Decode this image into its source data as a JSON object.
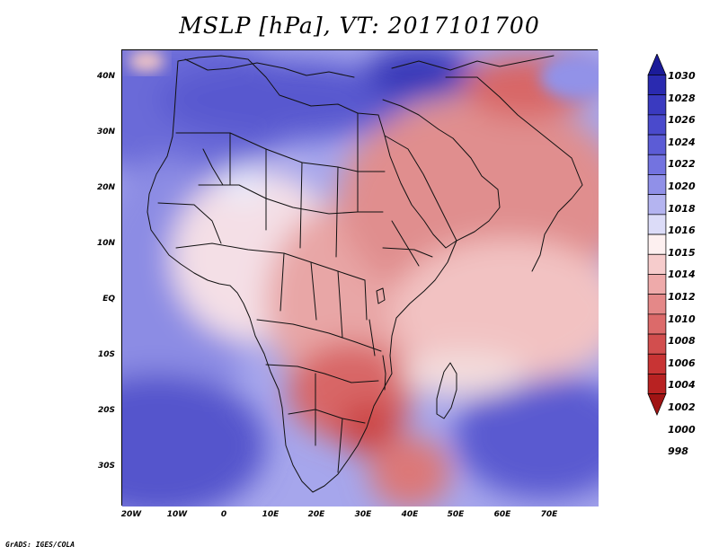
{
  "title": "MSLP [hPa], VT: 2017101700",
  "footer": "GrADS: IGES/COLA",
  "map": {
    "variable": "Mean sea level pressure",
    "units": "hPa",
    "region": "Africa, Arabia and western Indian Ocean",
    "lat_labels": [
      "40N",
      "30N",
      "20N",
      "10N",
      "EQ",
      "10S",
      "20S",
      "30S"
    ],
    "lon_labels": [
      "20W",
      "10W",
      "0",
      "10E",
      "20E",
      "30E",
      "40E",
      "50E",
      "60E",
      "70E"
    ]
  },
  "colorbar": {
    "levels": [
      "1030",
      "1028",
      "1026",
      "1024",
      "1022",
      "1020",
      "1018",
      "1016",
      "1015",
      "1014",
      "1012",
      "1010",
      "1008",
      "1006",
      "1004",
      "1002",
      "1000",
      "998"
    ],
    "colors": [
      "#1b1b99",
      "#2a2ab0",
      "#3a3ac0",
      "#4a4acc",
      "#5c5cd6",
      "#7373e0",
      "#9090e8",
      "#b4b4f0",
      "#dcdcf8",
      "#fdf0f0",
      "#f6cccc",
      "#eeaaaa",
      "#e48888",
      "#dc6a6a",
      "#d24e4e",
      "#c83434",
      "#b82222",
      "#a01414"
    ]
  }
}
